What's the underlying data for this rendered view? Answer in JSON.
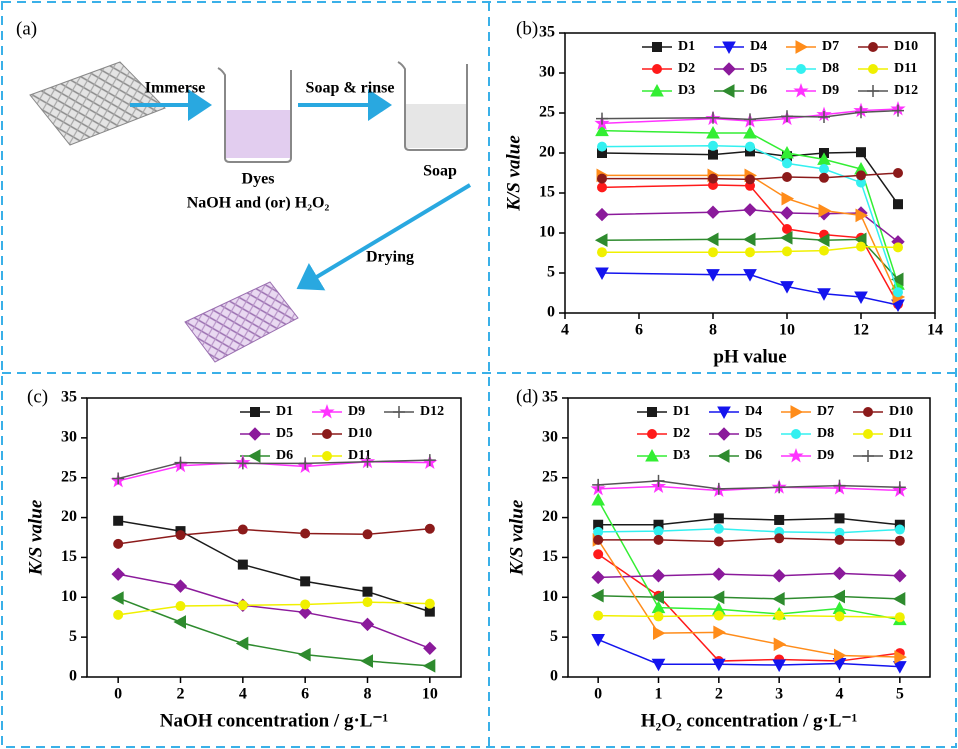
{
  "diagram": {
    "panel": "(a)",
    "arrows": [
      "Immerse",
      "Soap & rinse",
      "Drying"
    ],
    "labels": [
      "Dyes",
      "NaOH and (or) H₂O₂",
      "Soap"
    ]
  },
  "chart_data": [
    {
      "type": "line",
      "panel": "(b)",
      "x_label": "pH value",
      "y_label": "K/S value",
      "x": [
        5,
        8,
        9,
        10,
        11,
        12,
        13
      ],
      "xlim": [
        4,
        14
      ],
      "xticks": [
        4,
        6,
        8,
        10,
        12,
        14
      ],
      "ylim": [
        0,
        35
      ],
      "yticks": [
        0,
        5,
        10,
        15,
        20,
        25,
        30,
        35
      ],
      "legend": "upper right",
      "series": [
        {
          "name": "D1",
          "color": "#1a1a1a",
          "marker": "square",
          "values": [
            20,
            19.8,
            20.2,
            19.6,
            20,
            20.1,
            13.6
          ]
        },
        {
          "name": "D2",
          "color": "#ff1a1a",
          "marker": "circle",
          "values": [
            15.7,
            16,
            15.9,
            10.5,
            9.8,
            9.4,
            1.1
          ]
        },
        {
          "name": "D3",
          "color": "#33ee33",
          "marker": "triangle-up",
          "values": [
            22.8,
            22.5,
            22.5,
            20,
            19.2,
            18,
            3.6
          ]
        },
        {
          "name": "D4",
          "color": "#1414ee",
          "marker": "triangle-down",
          "values": [
            5,
            4.8,
            4.8,
            3.3,
            2.4,
            2,
            1
          ]
        },
        {
          "name": "D5",
          "color": "#8b1a9b",
          "marker": "diamond",
          "values": [
            12.3,
            12.6,
            12.9,
            12.5,
            12.4,
            12.5,
            8.9
          ]
        },
        {
          "name": "D6",
          "color": "#2e8b2e",
          "marker": "triangle-left",
          "values": [
            9.1,
            9.2,
            9.2,
            9.4,
            9.1,
            9.2,
            4.2
          ]
        },
        {
          "name": "D7",
          "color": "#ff8c1a",
          "marker": "triangle-right",
          "values": [
            17.2,
            17.2,
            17.2,
            14.3,
            12.8,
            12.2,
            2
          ]
        },
        {
          "name": "D8",
          "color": "#33f0f0",
          "marker": "circle",
          "values": [
            20.8,
            20.9,
            20.8,
            18.7,
            18,
            16.3,
            2.6
          ]
        },
        {
          "name": "D9",
          "color": "#ff33ff",
          "marker": "star",
          "values": [
            23.7,
            24.3,
            24,
            24.3,
            24.8,
            25.3,
            25.5
          ]
        },
        {
          "name": "D10",
          "color": "#8b1a1a",
          "marker": "circle",
          "values": [
            16.8,
            16.8,
            16.7,
            17,
            16.9,
            17.2,
            17.5
          ]
        },
        {
          "name": "D11",
          "color": "#f0f000",
          "marker": "circle",
          "values": [
            7.6,
            7.6,
            7.6,
            7.7,
            7.8,
            8.3,
            8.2
          ]
        },
        {
          "name": "D12",
          "color": "#555555",
          "marker": "plus",
          "values": [
            24.3,
            24.4,
            24.2,
            24.6,
            24.5,
            25.1,
            25.3
          ]
        }
      ]
    },
    {
      "type": "line",
      "panel": "(c)",
      "x_label": "NaOH concentration / g·L⁻¹",
      "y_label": "K/S value",
      "x": [
        0,
        2,
        4,
        6,
        8,
        10
      ],
      "xlim": [
        -1,
        11
      ],
      "xticks": [
        0,
        2,
        4,
        6,
        8,
        10
      ],
      "ylim": [
        0,
        35
      ],
      "yticks": [
        0,
        5,
        10,
        15,
        20,
        25,
        30,
        35
      ],
      "legend": "upper right",
      "series": [
        {
          "name": "D1",
          "color": "#1a1a1a",
          "marker": "square",
          "values": [
            19.6,
            18.3,
            14.1,
            12,
            10.7,
            8.2
          ]
        },
        {
          "name": "D5",
          "color": "#8b1a9b",
          "marker": "diamond",
          "values": [
            12.9,
            11.4,
            9,
            8.1,
            6.6,
            3.6
          ]
        },
        {
          "name": "D6",
          "color": "#2e8b2e",
          "marker": "triangle-left",
          "values": [
            9.9,
            6.9,
            4.2,
            2.8,
            2,
            1.4
          ]
        },
        {
          "name": "D9",
          "color": "#ff33ff",
          "marker": "star",
          "values": [
            24.6,
            26.5,
            26.9,
            26.4,
            27,
            26.9
          ]
        },
        {
          "name": "D10",
          "color": "#8b1a1a",
          "marker": "circle",
          "values": [
            16.7,
            17.8,
            18.5,
            18,
            17.9,
            18.6
          ]
        },
        {
          "name": "D11",
          "color": "#f0f000",
          "marker": "circle",
          "values": [
            7.8,
            8.9,
            9,
            9.1,
            9.4,
            9.2
          ]
        },
        {
          "name": "D12",
          "color": "#555555",
          "marker": "plus",
          "values": [
            24.9,
            26.9,
            26.8,
            26.8,
            27,
            27.2
          ]
        }
      ]
    },
    {
      "type": "line",
      "panel": "(d)",
      "x_label": "H₂O₂ concentration / g·L⁻¹",
      "y_label": "K/S value",
      "x": [
        0,
        1,
        2,
        3,
        4,
        5
      ],
      "xlim": [
        -0.5,
        5.5
      ],
      "xticks": [
        0,
        1,
        2,
        3,
        4,
        5
      ],
      "ylim": [
        0,
        35
      ],
      "yticks": [
        0,
        5,
        10,
        15,
        20,
        25,
        30,
        35
      ],
      "legend": "upper right",
      "series": [
        {
          "name": "D1",
          "color": "#1a1a1a",
          "marker": "square",
          "values": [
            19.1,
            19.1,
            19.9,
            19.7,
            19.9,
            19.1
          ]
        },
        {
          "name": "D2",
          "color": "#ff1a1a",
          "marker": "circle",
          "values": [
            15.4,
            10.2,
            2,
            2.2,
            2,
            3
          ]
        },
        {
          "name": "D3",
          "color": "#33ee33",
          "marker": "triangle-up",
          "values": [
            22.2,
            8.7,
            8.5,
            7.9,
            8.6,
            7.2
          ]
        },
        {
          "name": "D4",
          "color": "#1414ee",
          "marker": "triangle-down",
          "values": [
            4.7,
            1.6,
            1.6,
            1.5,
            1.7,
            1.3
          ]
        },
        {
          "name": "D5",
          "color": "#8b1a9b",
          "marker": "diamond",
          "values": [
            12.5,
            12.7,
            12.9,
            12.7,
            13,
            12.7
          ]
        },
        {
          "name": "D6",
          "color": "#2e8b2e",
          "marker": "triangle-left",
          "values": [
            10.2,
            10,
            10,
            9.8,
            10.1,
            9.8
          ]
        },
        {
          "name": "D7",
          "color": "#ff8c1a",
          "marker": "triangle-right",
          "values": [
            17.2,
            5.5,
            5.6,
            4.1,
            2.7,
            2.5
          ]
        },
        {
          "name": "D8",
          "color": "#33f0f0",
          "marker": "circle",
          "values": [
            18.2,
            18.3,
            18.6,
            18.2,
            18.1,
            18.5
          ]
        },
        {
          "name": "D9",
          "color": "#ff33ff",
          "marker": "star",
          "values": [
            23.6,
            23.9,
            23.4,
            23.8,
            23.7,
            23.4
          ]
        },
        {
          "name": "D10",
          "color": "#8b1a1a",
          "marker": "circle",
          "values": [
            17.2,
            17.2,
            17,
            17.4,
            17.2,
            17.1
          ]
        },
        {
          "name": "D11",
          "color": "#f0f000",
          "marker": "circle",
          "values": [
            7.7,
            7.6,
            7.7,
            7.7,
            7.6,
            7.5
          ]
        },
        {
          "name": "D12",
          "color": "#555555",
          "marker": "plus",
          "values": [
            24.1,
            24.6,
            23.6,
            23.8,
            24,
            23.8
          ]
        }
      ]
    }
  ]
}
